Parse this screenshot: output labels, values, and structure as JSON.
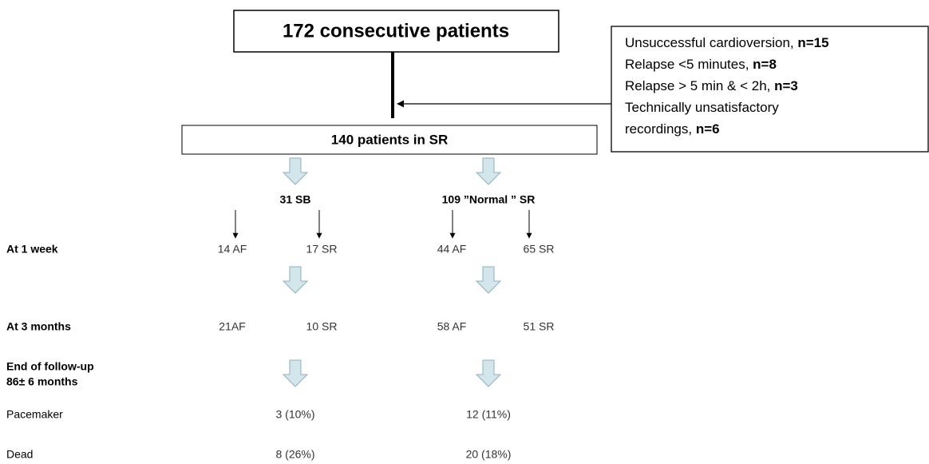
{
  "top_box": "172 consecutive patients",
  "exclusions": [
    {
      "text": "Unsuccessful cardioversion, ",
      "n": "n=15"
    },
    {
      "text": "Relapse <5 minutes, ",
      "n": "n=8"
    },
    {
      "text": "Relapse > 5 min & < 2h, ",
      "n": "n=3"
    },
    {
      "text": "Technically unsatisfactory",
      "n": ""
    },
    {
      "text": "recordings, ",
      "n": "n=6"
    }
  ],
  "middle_box": "140 patients in SR",
  "groups": [
    "31 SB",
    "109 ”Normal ” SR"
  ],
  "rows": [
    {
      "label": [
        "At 1 week"
      ],
      "values": [
        "14 AF",
        "17 SR",
        "44 AF",
        "65 SR"
      ]
    },
    {
      "label": [
        "At 3 months"
      ],
      "values": [
        "21AF",
        "10 SR",
        "58 AF",
        "51 SR"
      ]
    },
    {
      "label": [
        "End of follow-up",
        "86± 6 months"
      ],
      "values": []
    },
    {
      "label": [
        "Pacemaker"
      ],
      "values": [
        "3 (10%)",
        "12 (11%)"
      ]
    },
    {
      "label": [
        "Dead"
      ],
      "values": [
        "8 (26%)",
        "20 (18%)"
      ]
    }
  ]
}
